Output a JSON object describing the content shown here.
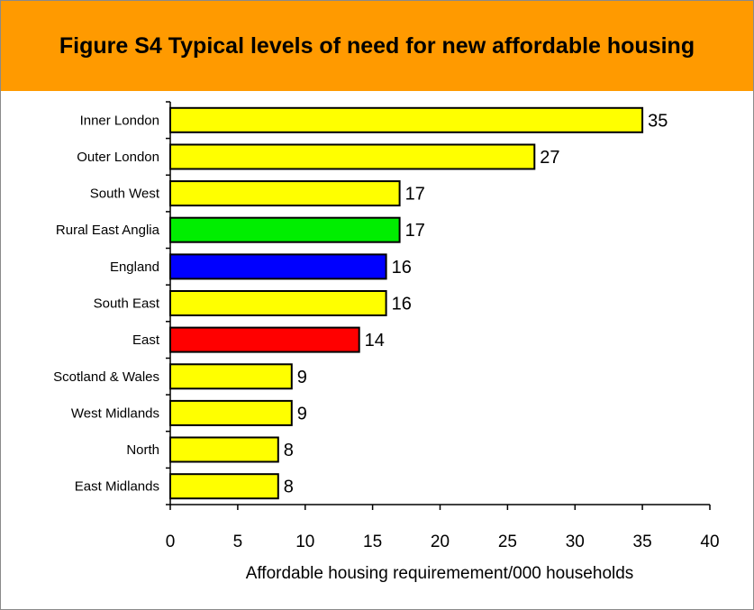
{
  "header": {
    "title": "Figure S4 Typical levels of need for new affordable housing"
  },
  "chart_data": {
    "type": "bar",
    "orientation": "horizontal",
    "title": "Figure S4 Typical levels of need for new affordable housing",
    "xlabel": "Affordable housing requiremement/000 households",
    "ylabel": "",
    "xlim": [
      0,
      40
    ],
    "xticks": [
      0,
      5,
      10,
      15,
      20,
      25,
      30,
      35,
      40
    ],
    "grid": false,
    "categories": [
      "Inner London",
      "Outer London",
      "South West",
      "Rural East Anglia",
      "England",
      "South East",
      "East",
      "Scotland & Wales",
      "West Midlands",
      "North",
      "East Midlands"
    ],
    "values": [
      35,
      27,
      17,
      17,
      16,
      16,
      14,
      9,
      9,
      8,
      8
    ],
    "colors": [
      "#ffff00",
      "#ffff00",
      "#ffff00",
      "#00ee00",
      "#0000ff",
      "#ffff00",
      "#ff0000",
      "#ffff00",
      "#ffff00",
      "#ffff00",
      "#ffff00"
    ]
  }
}
